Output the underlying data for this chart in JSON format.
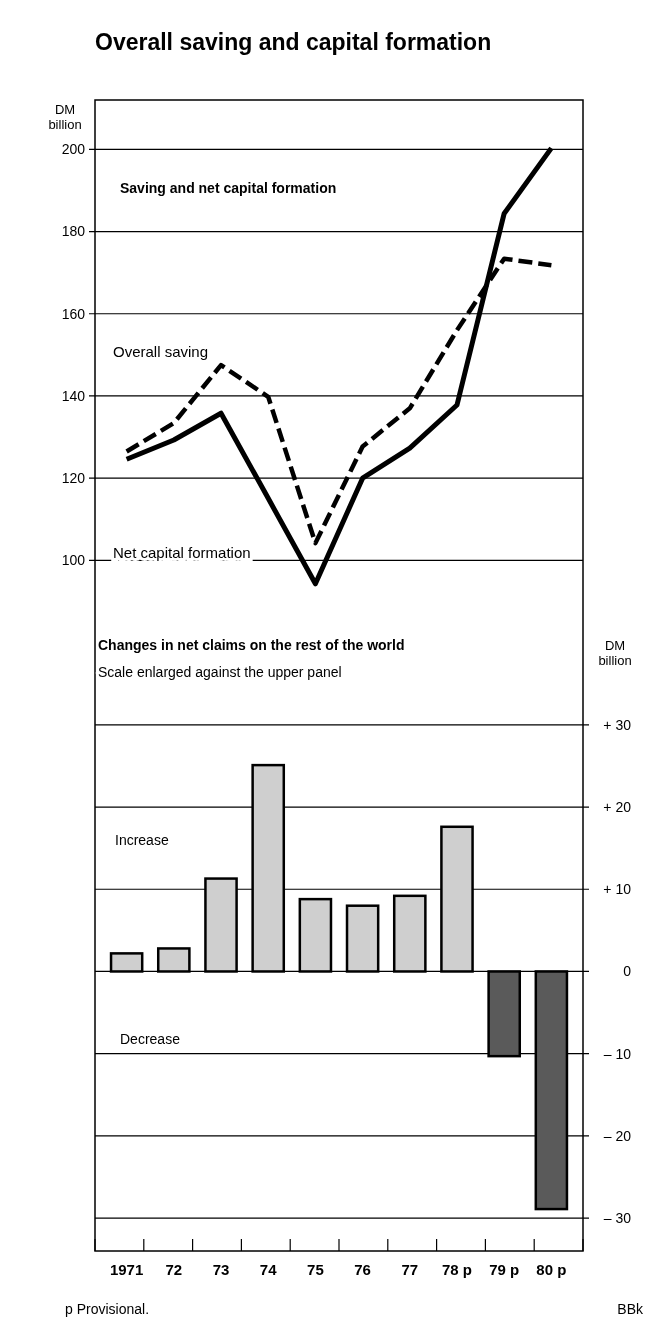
{
  "chart_data": {
    "type": "line",
    "title": "Overall saving and capital formation",
    "ylabel": "DM billion",
    "y2label": "DM billion",
    "categories": [
      "1971",
      "72",
      "73",
      "74",
      "75",
      "76",
      "77",
      "78 p",
      "79 p",
      "80 p"
    ],
    "series": [
      {
        "name": "Overall saving",
        "color": "#000000",
        "line_style": "dashed",
        "values": [
          126.5,
          133.4,
          147.5,
          139.8,
          104.2,
          127.7,
          137,
          156,
          173.4,
          171.8
        ]
      },
      {
        "name": "Net capital formation",
        "color": "#000000",
        "line_style": "solid",
        "values": [
          124.6,
          129.3,
          135.8,
          115.1,
          94.3,
          120,
          127.3,
          137.8,
          184.4,
          200.3
        ]
      },
      {
        "type": "bar",
        "axis": "y2",
        "colors": [
          "#cfcfcf",
          "#cfcfcf",
          "#cfcfcf",
          "#cfcfcf",
          "#cfcfcf",
          "#cfcfcf",
          "#cfcfcf",
          "#cfcfcf",
          "#5a5a5a",
          "#5a5a5a"
        ],
        "values": [
          2.2,
          2.8,
          11.3,
          25.1,
          8.8,
          8.0,
          9.2,
          17.6,
          -10.3,
          -28.9
        ]
      }
    ],
    "ylim": [
      -68,
      212
    ],
    "yticks": [
      100,
      120,
      140,
      160,
      180,
      200
    ],
    "y2lim": [
      -34,
      106
    ],
    "y2ticks": [
      {
        "value": 30,
        "label": "+ 30"
      },
      {
        "value": 20,
        "label": "+ 20"
      },
      {
        "value": 10,
        "label": "+ 10"
      },
      0,
      {
        "value": -10,
        "label": "– 10"
      },
      {
        "value": -20,
        "label": "– 20"
      },
      {
        "value": -30,
        "label": "– 30"
      }
    ],
    "grid": "y",
    "annotations": [
      "Saving and net capital formation",
      "Changes in net claims on the rest of the world",
      "Scale enlarged against the upper panel",
      "Increase",
      "Decrease",
      "p Provisional.",
      "BBk"
    ]
  }
}
